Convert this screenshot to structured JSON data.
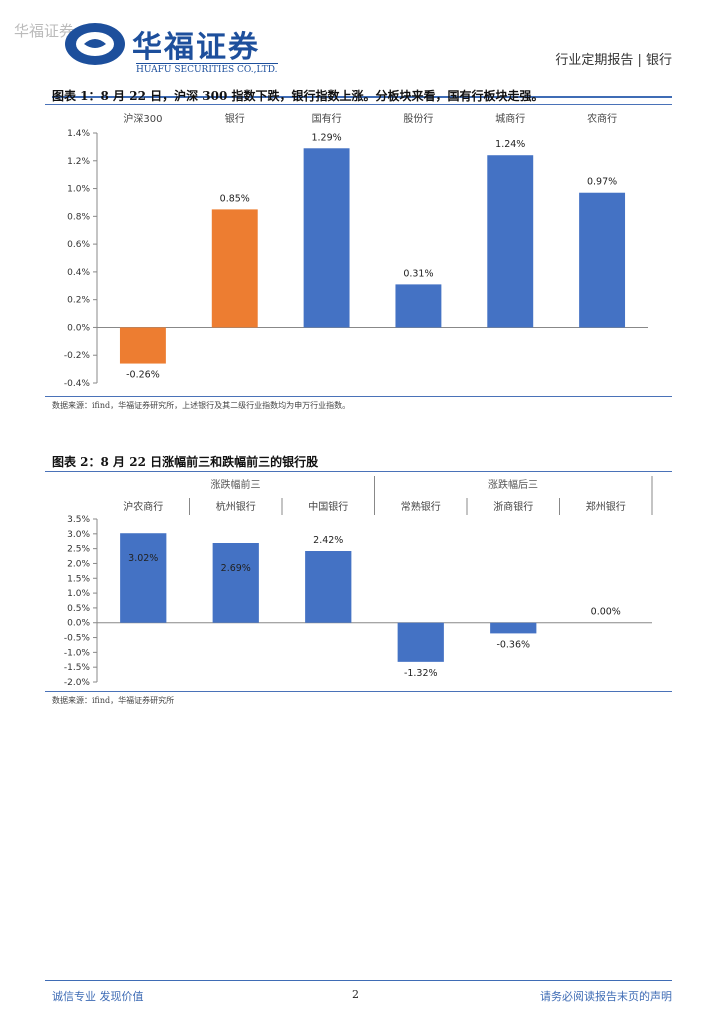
{
  "header": {
    "watermark": "华福证券",
    "logo_cn": "华福证券",
    "logo_en": "HUAFU SECURITIES CO.,LTD.",
    "report_type": "行业定期报告 | 银行"
  },
  "figure1": {
    "caption": "图表 1：8 月 22 日，沪深 300 指数下跌，银行指数上涨。分板块来看，国有行板块走强。",
    "source": "数据来源：ifind，华福证券研究所，上述银行及其二级行业指数均为申万行业指数。"
  },
  "figure2": {
    "caption": "图表 2：8 月 22 日涨幅前三和跌幅前三的银行股",
    "source": "数据来源：ifind，华福证券研究所",
    "group_labels": [
      "涨跌幅前三",
      "涨跌幅后三"
    ]
  },
  "chart_data": [
    {
      "type": "bar",
      "title": "",
      "categories": [
        "沪深300",
        "银行",
        "国有行",
        "股份行",
        "城商行",
        "农商行"
      ],
      "values": [
        -0.26,
        0.85,
        1.29,
        0.31,
        1.24,
        0.97
      ],
      "data_labels": [
        "-0.26%",
        "0.85%",
        "1.29%",
        "0.31%",
        "1.24%",
        "0.97%"
      ],
      "colors": [
        "#ed7d31",
        "#ed7d31",
        "#4472c4",
        "#4472c4",
        "#4472c4",
        "#4472c4"
      ],
      "yticks": [
        "1.4%",
        "1.2%",
        "1.0%",
        "0.8%",
        "0.6%",
        "0.4%",
        "0.2%",
        "0.0%",
        "-0.2%",
        "-0.4%"
      ],
      "ylim": [
        -0.4,
        1.4
      ],
      "grid": false
    },
    {
      "type": "bar",
      "title": "",
      "categories": [
        "沪农商行",
        "杭州银行",
        "中国银行",
        "常熟银行",
        "浙商银行",
        "郑州银行"
      ],
      "values": [
        3.02,
        2.69,
        2.42,
        -1.32,
        -0.36,
        0.0
      ],
      "data_labels": [
        "3.02%",
        "2.69%",
        "2.42%",
        "-1.32%",
        "-0.36%",
        "0.00%"
      ],
      "colors": [
        "#4472c4",
        "#4472c4",
        "#4472c4",
        "#4472c4",
        "#4472c4",
        "#4472c4"
      ],
      "yticks": [
        "3.5%",
        "3.0%",
        "2.5%",
        "2.0%",
        "1.5%",
        "1.0%",
        "0.5%",
        "0.0%",
        "-0.5%",
        "-1.0%",
        "-1.5%",
        "-2.0%"
      ],
      "ylim": [
        -2.0,
        3.5
      ],
      "grid": false
    }
  ],
  "footer": {
    "left": "诚信专业  发现价值",
    "page": "2",
    "right": "请务必阅读报告末页的声明"
  }
}
